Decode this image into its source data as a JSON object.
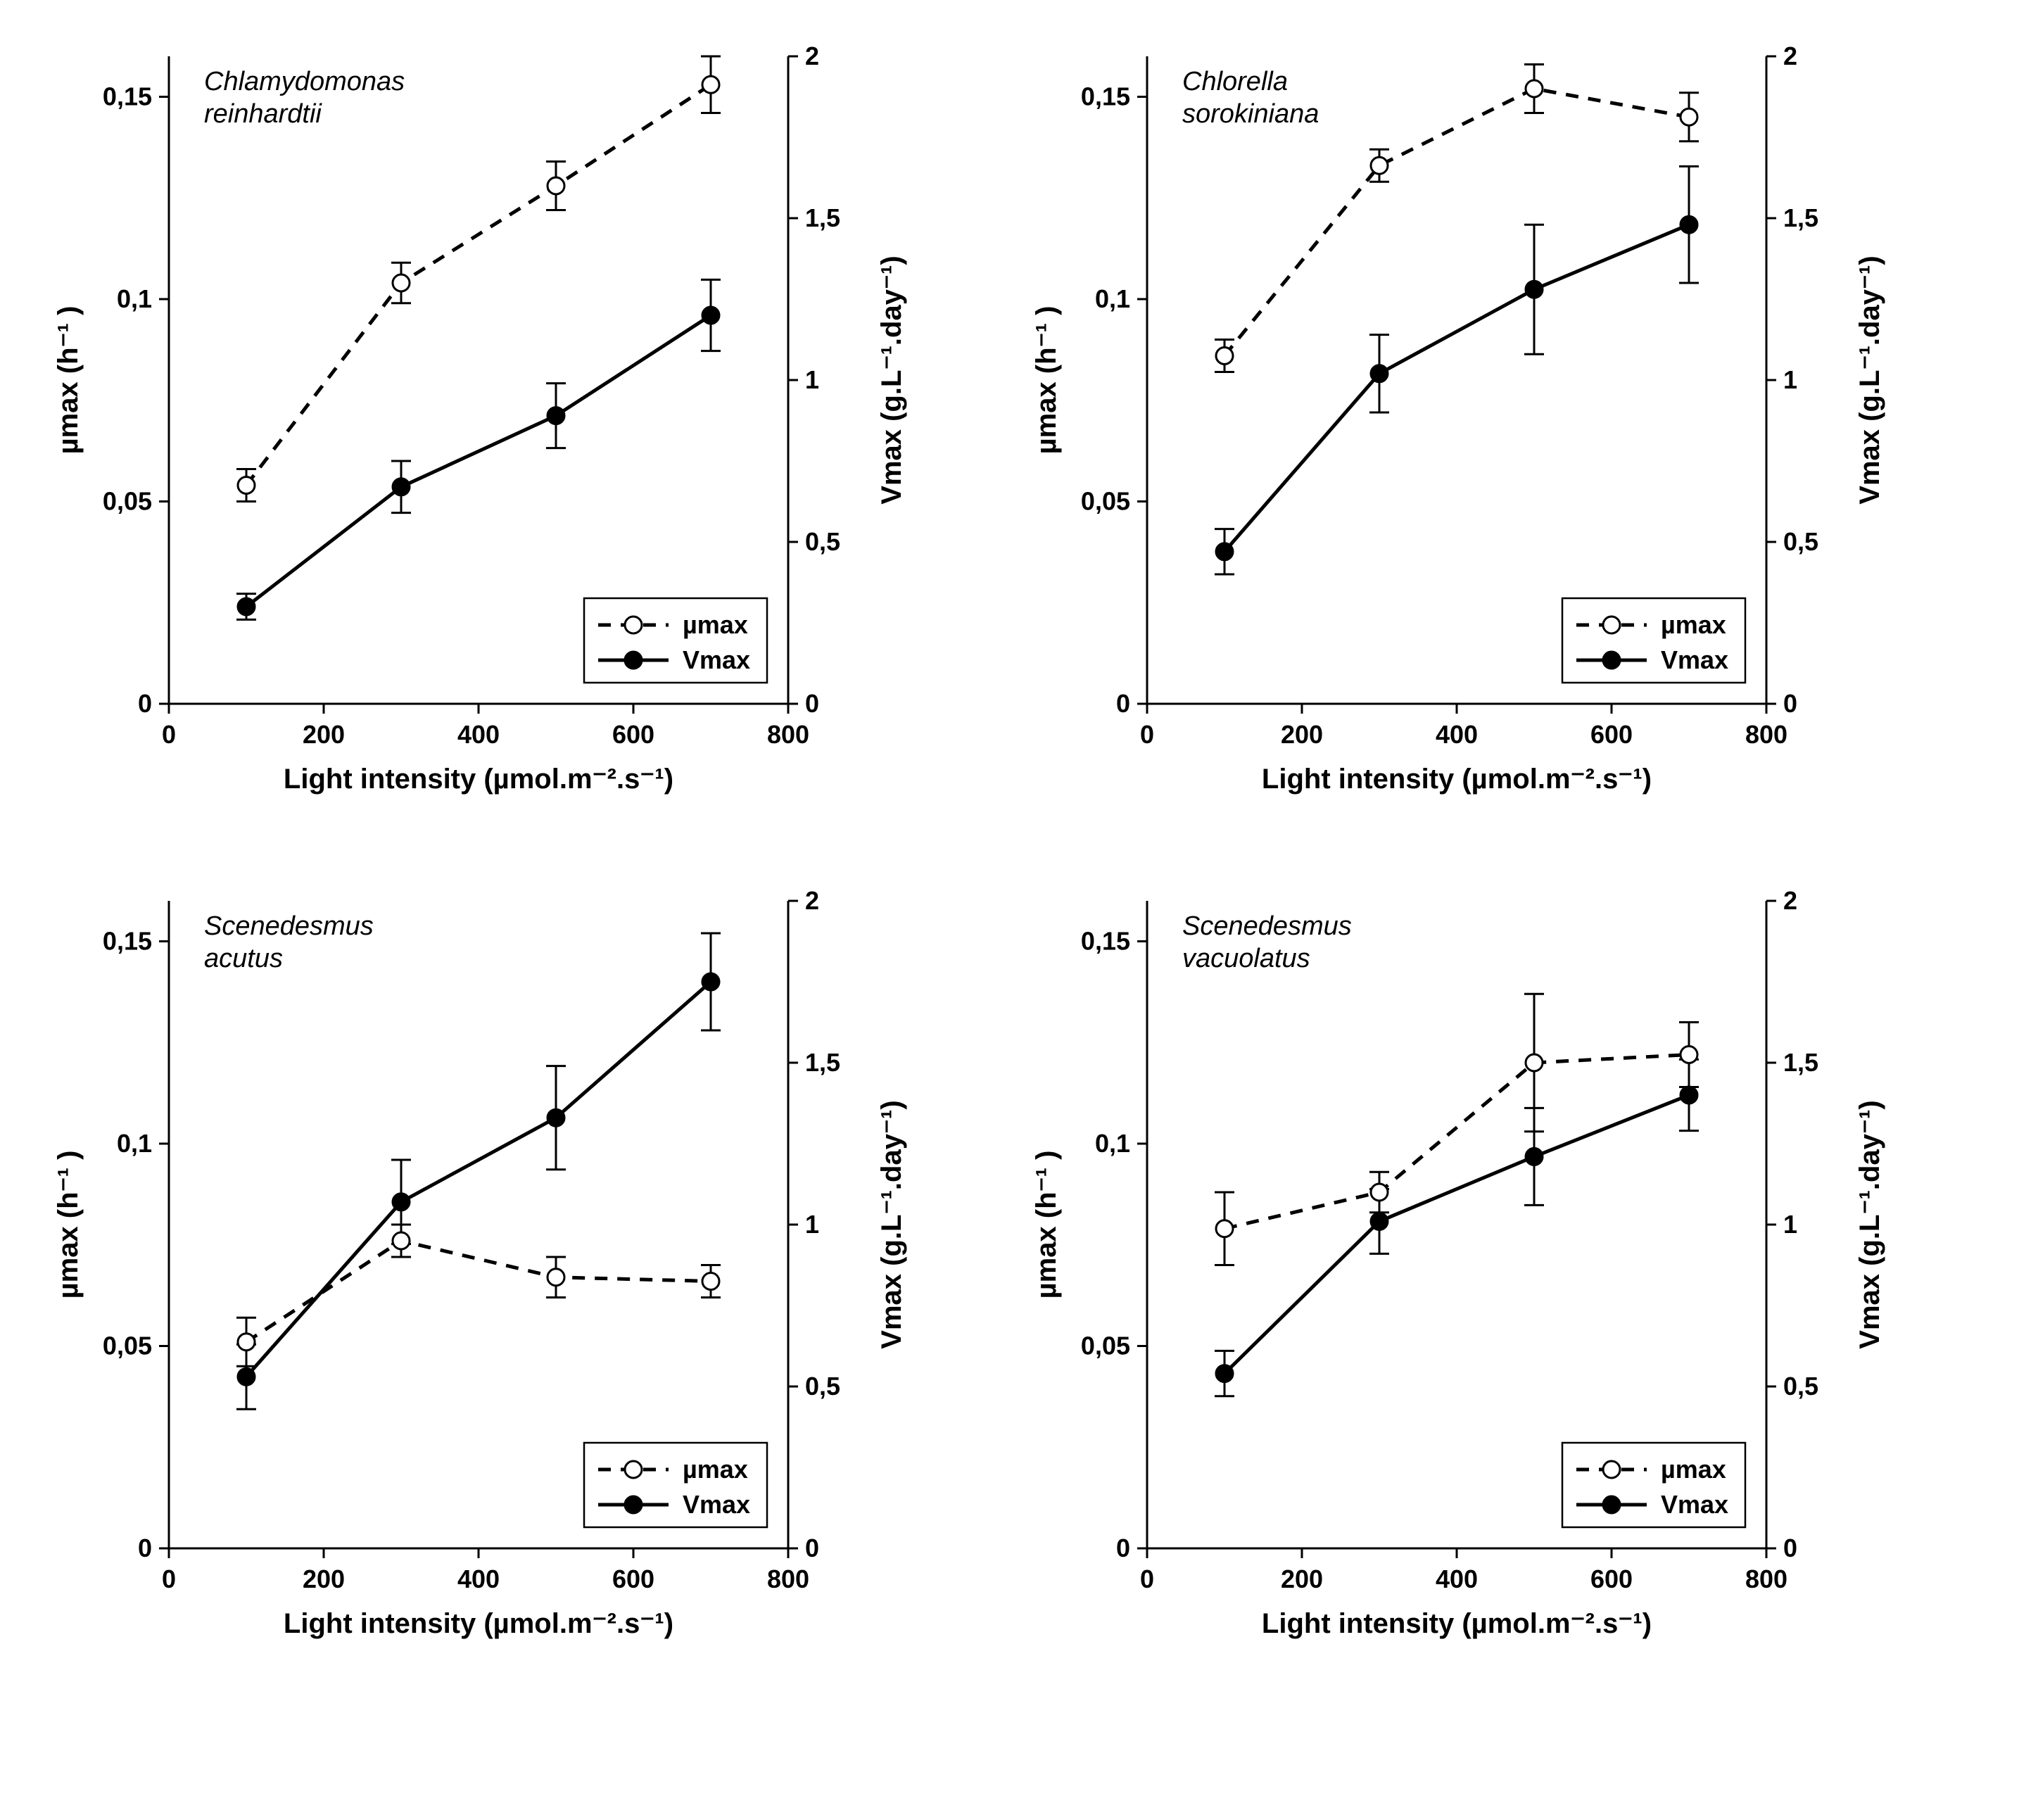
{
  "global": {
    "xlabel": "Light intensity (µmol.m⁻².s⁻¹)",
    "ylabel_left": "µmax (h⁻¹ )",
    "ylabel_right": "Vmax (g.L⁻¹.day⁻¹)",
    "legend_mu": "µmax",
    "legend_v": "Vmax",
    "xlim": [
      0,
      800
    ],
    "xticks": [
      0,
      200,
      400,
      600,
      800
    ],
    "ylim_left": [
      0,
      0.16
    ],
    "yticks_left": [
      0,
      0.05,
      0.1,
      0.15
    ],
    "yticklabels_left": [
      "0",
      "0,05",
      "0,1",
      "0,15"
    ],
    "ylim_right": [
      0,
      2
    ],
    "yticks_right": [
      0,
      0.5,
      1,
      1.5,
      2
    ],
    "yticklabels_right": [
      "0",
      "0,5",
      "1",
      "1,5",
      "2"
    ],
    "marker_radius": 12,
    "err_cap": 14,
    "colors": {
      "axis": "#000000",
      "line": "#000000",
      "marker_fill": "#000000",
      "marker_open_fill": "#ffffff",
      "background": "#ffffff"
    },
    "fonts": {
      "tick_size": 36,
      "axis_title_size": 40,
      "species_size": 38,
      "legend_size": 36
    }
  },
  "panels": [
    {
      "species_lines": [
        "Chlamydomonas",
        "reinhardtii"
      ],
      "x": [
        100,
        300,
        500,
        700
      ],
      "mu": [
        0.054,
        0.104,
        0.128,
        0.153
      ],
      "mu_e": [
        0.004,
        0.005,
        0.006,
        0.007
      ],
      "v": [
        0.3,
        0.67,
        0.89,
        1.2
      ],
      "v_e": [
        0.04,
        0.08,
        0.1,
        0.11
      ]
    },
    {
      "species_lines": [
        "Chlorella",
        "sorokiniana"
      ],
      "x": [
        100,
        300,
        500,
        700
      ],
      "mu": [
        0.086,
        0.133,
        0.152,
        0.145
      ],
      "mu_e": [
        0.004,
        0.004,
        0.006,
        0.006
      ],
      "v": [
        0.47,
        1.02,
        1.28,
        1.48
      ],
      "v_e": [
        0.07,
        0.12,
        0.2,
        0.18
      ]
    },
    {
      "species_lines": [
        "Scenedesmus",
        "acutus"
      ],
      "x": [
        100,
        300,
        500,
        700
      ],
      "mu": [
        0.051,
        0.076,
        0.067,
        0.066
      ],
      "mu_e": [
        0.006,
        0.004,
        0.005,
        0.004
      ],
      "v": [
        0.53,
        1.07,
        1.33,
        1.75
      ],
      "v_e": [
        0.1,
        0.13,
        0.16,
        0.15
      ]
    },
    {
      "species_lines": [
        "Scenedesmus",
        "vacuolatus"
      ],
      "x": [
        100,
        300,
        500,
        700
      ],
      "mu": [
        0.079,
        0.088,
        0.12,
        0.122
      ],
      "mu_e": [
        0.009,
        0.005,
        0.017,
        0.008
      ],
      "v": [
        0.54,
        1.01,
        1.21,
        1.4
      ],
      "v_e": [
        0.07,
        0.1,
        0.15,
        0.11
      ]
    }
  ]
}
